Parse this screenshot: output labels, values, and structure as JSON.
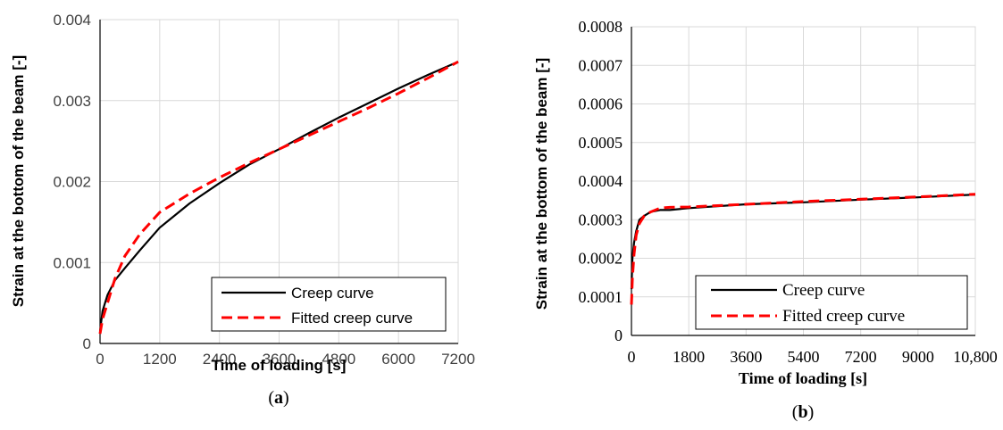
{
  "chart_data": [
    {
      "type": "line",
      "panel_label": {
        "open": "(",
        "letter": "a",
        "close": ")"
      },
      "xlabel": "Time of loading [s]",
      "ylabel": "Strain at the bottom of the beam [-]",
      "xlim": [
        0,
        7200
      ],
      "ylim": [
        0,
        0.004
      ],
      "xticks": [
        0,
        1200,
        2400,
        3600,
        4800,
        6000,
        7200
      ],
      "xtick_labels": [
        "0",
        "1200",
        "2400",
        "3600",
        "4800",
        "6000",
        "7200"
      ],
      "yticks": [
        0,
        0.001,
        0.002,
        0.003,
        0.004
      ],
      "ytick_labels": [
        "0",
        "0.001",
        "0.002",
        "0.003",
        "0.004"
      ],
      "grid": true,
      "legend_position": "bottom-right",
      "series": [
        {
          "name": "Creep curve",
          "color": "#000000",
          "dash": "solid",
          "x": [
            0,
            50,
            150,
            300,
            500,
            800,
            1200,
            1800,
            2400,
            3000,
            3600,
            4200,
            4800,
            5400,
            6000,
            6600,
            7200
          ],
          "y": [
            0.00015,
            0.0004,
            0.0006,
            0.00078,
            0.00093,
            0.00115,
            0.00143,
            0.00173,
            0.00198,
            0.00221,
            0.0024,
            0.0026,
            0.00279,
            0.00297,
            0.00315,
            0.00332,
            0.00348
          ]
        },
        {
          "name": "Fitted creep curve",
          "color": "#ff0000",
          "dash": "dashed",
          "x": [
            0,
            50,
            150,
            300,
            500,
            800,
            1200,
            1800,
            2400,
            3000,
            3600,
            4200,
            4800,
            5400,
            6000,
            6600,
            7200
          ],
          "y": [
            0.00012,
            0.0003,
            0.0005,
            0.0008,
            0.00108,
            0.00135,
            0.00162,
            0.00185,
            0.00205,
            0.00223,
            0.0024,
            0.00257,
            0.00274,
            0.00291,
            0.00309,
            0.00328,
            0.00348
          ]
        }
      ]
    },
    {
      "type": "line",
      "panel_label": {
        "open": "(",
        "letter": "b",
        "close": ")"
      },
      "xlabel": "Time of loading [s]",
      "ylabel": "Strain at the bottom of the beam [-]",
      "xlim": [
        0,
        10800
      ],
      "ylim": [
        0,
        0.0008
      ],
      "xticks": [
        0,
        1800,
        3600,
        5400,
        7200,
        9000,
        10800
      ],
      "xtick_labels": [
        "0",
        "1800",
        "3600",
        "5400",
        "7200",
        "9000",
        "10,800"
      ],
      "yticks": [
        0,
        0.0001,
        0.0002,
        0.0003,
        0.0004,
        0.0005,
        0.0006,
        0.0007,
        0.0008
      ],
      "ytick_labels": [
        "0",
        "0.0001",
        "0.0002",
        "0.0003",
        "0.0004",
        "0.0005",
        "0.0006",
        "0.0007",
        "0.0008"
      ],
      "grid": true,
      "legend_position": "bottom-right",
      "series": [
        {
          "name": "Creep curve",
          "color": "#000000",
          "dash": "solid",
          "x": [
            0,
            30,
            80,
            150,
            250,
            400,
            600,
            900,
            1200,
            1800,
            3600,
            5400,
            7200,
            9000,
            10800
          ],
          "y": [
            0.00012,
            0.0002,
            0.00024,
            0.00027,
            0.0003,
            0.00031,
            0.00032,
            0.000325,
            0.000325,
            0.00033,
            0.00034,
            0.000345,
            0.000352,
            0.000358,
            0.000365
          ]
        },
        {
          "name": "Fitted creep curve",
          "color": "#ff0000",
          "dash": "dashed",
          "x": [
            0,
            30,
            80,
            150,
            250,
            400,
            600,
            900,
            1200,
            1800,
            3600,
            5400,
            7200,
            9000,
            10800
          ],
          "y": [
            8e-05,
            0.00015,
            0.00021,
            0.00026,
            0.00029,
            0.00031,
            0.00032,
            0.00033,
            0.000332,
            0.000333,
            0.00034,
            0.000347,
            0.000353,
            0.000359,
            0.000366
          ]
        }
      ]
    }
  ]
}
